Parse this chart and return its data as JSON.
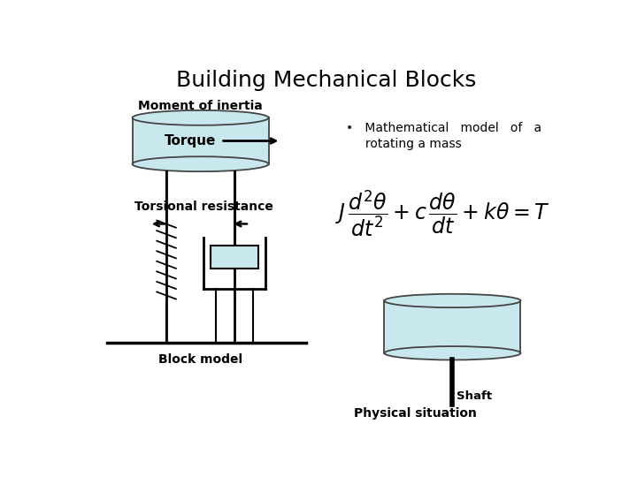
{
  "title": "Building Mechanical Blocks",
  "title_fontsize": 18,
  "title_fontweight": "normal",
  "bg_color": "#ffffff",
  "disk_color": "#c8e8ed",
  "disk_edge_color": "#444444",
  "label_moment": "Moment of inertia",
  "label_torque": "Torque",
  "label_torsional": "Torsional resistance",
  "label_block": "Block model",
  "label_physical": "Physical situation",
  "label_shaft": "Shaft",
  "bullet_line1": "•   Mathematical   model   of   a",
  "bullet_line2": "     rotating a mass"
}
